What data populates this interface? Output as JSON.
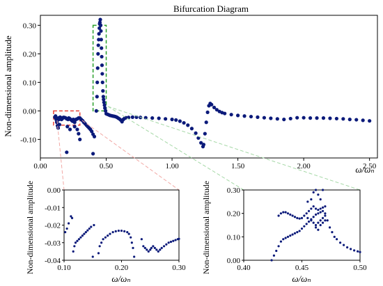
{
  "chart_data": [
    {
      "id": "main",
      "type": "scatter",
      "title": "Bifurcation Diagram",
      "xlabel": "ω/ωₙ",
      "ylabel": "Non-dimensional amplitude",
      "xlim": [
        0,
        2.56
      ],
      "ylim": [
        -0.165,
        0.335
      ],
      "xticks": [
        "0.00",
        "0.50",
        "1.00",
        "1.50",
        "2.00",
        "2.50"
      ],
      "xtick_values": [
        0,
        0.5,
        1.0,
        1.5,
        2.0,
        2.5
      ],
      "yticks": [
        "-0.10",
        "0.00",
        "0.10",
        "0.20",
        "0.30"
      ],
      "ytick_values": [
        -0.1,
        0.0,
        0.1,
        0.2,
        0.3
      ],
      "series_color": "#0b1a7a",
      "highlight_boxes": [
        {
          "color": "#e8453c",
          "x": [
            0.1,
            0.3
          ],
          "y": [
            -0.05,
            0.0
          ]
        },
        {
          "color": "#2aa02b",
          "x": [
            0.4,
            0.5
          ],
          "y": [
            0.0,
            0.3
          ]
        }
      ],
      "grid": false,
      "points": [
        [
          0.11,
          -0.022
        ],
        [
          0.115,
          -0.018
        ],
        [
          0.12,
          -0.03
        ],
        [
          0.125,
          -0.04
        ],
        [
          0.13,
          -0.052
        ],
        [
          0.135,
          -0.025
        ],
        [
          0.14,
          -0.03
        ],
        [
          0.145,
          -0.048
        ],
        [
          0.15,
          -0.022
        ],
        [
          0.155,
          -0.026
        ],
        [
          0.16,
          -0.03
        ],
        [
          0.165,
          -0.028
        ],
        [
          0.17,
          -0.024
        ],
        [
          0.175,
          -0.023
        ],
        [
          0.18,
          -0.023
        ],
        [
          0.19,
          -0.024
        ],
        [
          0.2,
          -0.028
        ],
        [
          0.205,
          -0.055
        ],
        [
          0.21,
          -0.03
        ],
        [
          0.215,
          -0.025
        ],
        [
          0.22,
          -0.026
        ],
        [
          0.225,
          -0.065
        ],
        [
          0.23,
          -0.03
        ],
        [
          0.235,
          -0.032
        ],
        [
          0.24,
          -0.034
        ],
        [
          0.245,
          -0.036
        ],
        [
          0.25,
          -0.03
        ],
        [
          0.255,
          -0.032
        ],
        [
          0.26,
          -0.035
        ],
        [
          0.27,
          -0.03
        ],
        [
          0.28,
          -0.028
        ],
        [
          0.29,
          -0.025
        ],
        [
          0.3,
          -0.025
        ],
        [
          0.31,
          -0.03
        ],
        [
          0.32,
          -0.034
        ],
        [
          0.33,
          -0.04
        ],
        [
          0.34,
          -0.045
        ],
        [
          0.35,
          -0.05
        ],
        [
          0.36,
          -0.055
        ],
        [
          0.37,
          -0.06
        ],
        [
          0.38,
          -0.065
        ],
        [
          0.39,
          -0.072
        ],
        [
          0.4,
          -0.082
        ],
        [
          0.41,
          -0.09
        ],
        [
          0.125,
          -0.038
        ],
        [
          0.135,
          -0.06
        ],
        [
          0.2,
          -0.145
        ],
        [
          0.26,
          -0.04
        ],
        [
          0.26,
          -0.055
        ],
        [
          0.28,
          -0.065
        ],
        [
          0.29,
          -0.08
        ],
        [
          0.3,
          -0.1
        ],
        [
          0.4,
          -0.15
        ],
        [
          0.425,
          0.0
        ],
        [
          0.43,
          0.05
        ],
        [
          0.432,
          0.1
        ],
        [
          0.435,
          0.15
        ],
        [
          0.438,
          0.2
        ],
        [
          0.44,
          0.23
        ],
        [
          0.443,
          0.25
        ],
        [
          0.445,
          0.27
        ],
        [
          0.448,
          0.29
        ],
        [
          0.45,
          0.305
        ],
        [
          0.452,
          0.31
        ],
        [
          0.455,
          0.32
        ],
        [
          0.458,
          0.3
        ],
        [
          0.46,
          0.28
        ],
        [
          0.462,
          0.25
        ],
        [
          0.464,
          0.22
        ],
        [
          0.466,
          0.19
        ],
        [
          0.468,
          0.16
        ],
        [
          0.47,
          0.13
        ],
        [
          0.472,
          0.1
        ],
        [
          0.475,
          0.07
        ],
        [
          0.478,
          0.05
        ],
        [
          0.48,
          0.04
        ],
        [
          0.483,
          0.03
        ],
        [
          0.487,
          0.02
        ],
        [
          0.49,
          0.01
        ],
        [
          0.495,
          0.0
        ],
        [
          0.5,
          -0.01
        ],
        [
          0.51,
          -0.012
        ],
        [
          0.52,
          -0.014
        ],
        [
          0.53,
          -0.016
        ],
        [
          0.54,
          -0.017
        ],
        [
          0.55,
          -0.018
        ],
        [
          0.56,
          -0.019
        ],
        [
          0.57,
          -0.02
        ],
        [
          0.58,
          -0.022
        ],
        [
          0.59,
          -0.025
        ],
        [
          0.6,
          -0.028
        ],
        [
          0.61,
          -0.032
        ],
        [
          0.62,
          -0.038
        ],
        [
          0.63,
          -0.03
        ],
        [
          0.64,
          -0.026
        ],
        [
          0.65,
          -0.024
        ],
        [
          0.67,
          -0.023
        ],
        [
          0.7,
          -0.022
        ],
        [
          0.73,
          -0.022
        ],
        [
          0.76,
          -0.023
        ],
        [
          0.8,
          -0.024
        ],
        [
          0.85,
          -0.025
        ],
        [
          0.9,
          -0.026
        ],
        [
          0.95,
          -0.028
        ],
        [
          1.0,
          -0.03
        ],
        [
          1.03,
          -0.032
        ],
        [
          1.06,
          -0.036
        ],
        [
          1.09,
          -0.042
        ],
        [
          1.12,
          -0.05
        ],
        [
          1.15,
          -0.062
        ],
        [
          1.18,
          -0.078
        ],
        [
          1.2,
          -0.095
        ],
        [
          1.22,
          -0.112
        ],
        [
          1.235,
          -0.125
        ],
        [
          1.24,
          -0.118
        ],
        [
          1.25,
          -0.08
        ],
        [
          1.26,
          -0.04
        ],
        [
          1.27,
          -0.005
        ],
        [
          1.28,
          0.018
        ],
        [
          1.29,
          0.026
        ],
        [
          1.3,
          0.022
        ],
        [
          1.32,
          0.012
        ],
        [
          1.34,
          0.004
        ],
        [
          1.36,
          -0.002
        ],
        [
          1.38,
          -0.006
        ],
        [
          1.4,
          -0.009
        ],
        [
          1.45,
          -0.013
        ],
        [
          1.5,
          -0.016
        ],
        [
          1.55,
          -0.018
        ],
        [
          1.6,
          -0.02
        ],
        [
          1.65,
          -0.022
        ],
        [
          1.7,
          -0.024
        ],
        [
          1.75,
          -0.026
        ],
        [
          1.8,
          -0.028
        ],
        [
          1.85,
          -0.03
        ],
        [
          1.9,
          -0.027
        ],
        [
          1.95,
          -0.024
        ],
        [
          2.0,
          -0.024
        ],
        [
          2.05,
          -0.025
        ],
        [
          2.1,
          -0.025
        ],
        [
          2.15,
          -0.025
        ],
        [
          2.2,
          -0.026
        ],
        [
          2.25,
          -0.027
        ],
        [
          2.3,
          -0.028
        ],
        [
          2.35,
          -0.03
        ],
        [
          2.4,
          -0.031
        ],
        [
          2.45,
          -0.033
        ],
        [
          2.5,
          -0.035
        ]
      ]
    },
    {
      "id": "inset-left",
      "type": "scatter",
      "xlabel": "ω/ωₙ",
      "ylabel": "Non-dimensional amplitude",
      "xlim": [
        0.1,
        0.3
      ],
      "ylim": [
        -0.04,
        0.0
      ],
      "xticks": [
        "0.10",
        "0.20",
        "0.30"
      ],
      "xtick_values": [
        0.1,
        0.2,
        0.3
      ],
      "yticks": [
        "-0.04",
        "-0.03",
        "-0.02",
        "-0.01",
        "0.00"
      ],
      "ytick_values": [
        -0.04,
        -0.03,
        -0.02,
        -0.01,
        0.0
      ],
      "points": [
        [
          0.102,
          -0.024
        ],
        [
          0.105,
          -0.022
        ],
        [
          0.108,
          -0.019
        ],
        [
          0.112,
          -0.015
        ],
        [
          0.114,
          -0.016
        ],
        [
          0.116,
          -0.035
        ],
        [
          0.118,
          -0.032
        ],
        [
          0.12,
          -0.03
        ],
        [
          0.123,
          -0.029
        ],
        [
          0.126,
          -0.028
        ],
        [
          0.129,
          -0.027
        ],
        [
          0.132,
          -0.026
        ],
        [
          0.135,
          -0.025
        ],
        [
          0.138,
          -0.024
        ],
        [
          0.141,
          -0.023
        ],
        [
          0.144,
          -0.022
        ],
        [
          0.147,
          -0.021
        ],
        [
          0.15,
          -0.038
        ],
        [
          0.152,
          -0.02
        ],
        [
          0.16,
          -0.036
        ],
        [
          0.162,
          -0.032
        ],
        [
          0.165,
          -0.03
        ],
        [
          0.168,
          -0.028
        ],
        [
          0.172,
          -0.027
        ],
        [
          0.176,
          -0.026
        ],
        [
          0.18,
          -0.025
        ],
        [
          0.185,
          -0.024
        ],
        [
          0.19,
          -0.0235
        ],
        [
          0.195,
          -0.0232
        ],
        [
          0.2,
          -0.0232
        ],
        [
          0.205,
          -0.0235
        ],
        [
          0.21,
          -0.024
        ],
        [
          0.213,
          -0.025
        ],
        [
          0.216,
          -0.027
        ],
        [
          0.218,
          -0.03
        ],
        [
          0.22,
          -0.033
        ],
        [
          0.222,
          -0.038
        ],
        [
          0.235,
          -0.028
        ],
        [
          0.238,
          -0.032
        ],
        [
          0.241,
          -0.033
        ],
        [
          0.244,
          -0.034
        ],
        [
          0.247,
          -0.035
        ],
        [
          0.25,
          -0.034
        ],
        [
          0.252,
          -0.033
        ],
        [
          0.255,
          -0.032
        ],
        [
          0.258,
          -0.033
        ],
        [
          0.261,
          -0.034
        ],
        [
          0.264,
          -0.035
        ],
        [
          0.267,
          -0.034
        ],
        [
          0.27,
          -0.033
        ],
        [
          0.274,
          -0.032
        ],
        [
          0.278,
          -0.031
        ],
        [
          0.282,
          -0.03
        ],
        [
          0.286,
          -0.0295
        ],
        [
          0.29,
          -0.029
        ],
        [
          0.294,
          -0.0285
        ],
        [
          0.298,
          -0.028
        ],
        [
          0.3,
          -0.0278
        ]
      ]
    },
    {
      "id": "inset-right",
      "type": "scatter",
      "xlabel": "ω/ωₙ",
      "ylabel": "Non-dimensional amplitude",
      "xlim": [
        0.4,
        0.5
      ],
      "ylim": [
        0.0,
        0.3
      ],
      "xticks": [
        "0.40",
        "0.45",
        "0.50"
      ],
      "xtick_values": [
        0.4,
        0.45,
        0.5
      ],
      "yticks": [
        "0.00",
        "0.10",
        "0.20",
        "0.30"
      ],
      "ytick_values": [
        0.0,
        0.1,
        0.2,
        0.3
      ],
      "points": [
        [
          0.424,
          0.0
        ],
        [
          0.426,
          0.02
        ],
        [
          0.428,
          0.04
        ],
        [
          0.43,
          0.06
        ],
        [
          0.432,
          0.08
        ],
        [
          0.434,
          0.09
        ],
        [
          0.436,
          0.095
        ],
        [
          0.438,
          0.1
        ],
        [
          0.44,
          0.105
        ],
        [
          0.442,
          0.11
        ],
        [
          0.444,
          0.115
        ],
        [
          0.446,
          0.12
        ],
        [
          0.448,
          0.125
        ],
        [
          0.45,
          0.135
        ],
        [
          0.452,
          0.145
        ],
        [
          0.454,
          0.155
        ],
        [
          0.456,
          0.165
        ],
        [
          0.458,
          0.175
        ],
        [
          0.46,
          0.185
        ],
        [
          0.462,
          0.195
        ],
        [
          0.464,
          0.2
        ],
        [
          0.466,
          0.205
        ],
        [
          0.468,
          0.21
        ],
        [
          0.47,
          0.2
        ],
        [
          0.472,
          0.17
        ],
        [
          0.474,
          0.14
        ],
        [
          0.476,
          0.12
        ],
        [
          0.478,
          0.1
        ],
        [
          0.48,
          0.09
        ],
        [
          0.483,
          0.075
        ],
        [
          0.486,
          0.065
        ],
        [
          0.489,
          0.055
        ],
        [
          0.492,
          0.048
        ],
        [
          0.495,
          0.042
        ],
        [
          0.498,
          0.038
        ],
        [
          0.5,
          0.035
        ],
        [
          0.43,
          0.19
        ],
        [
          0.432,
          0.2
        ],
        [
          0.434,
          0.205
        ],
        [
          0.436,
          0.205
        ],
        [
          0.438,
          0.2
        ],
        [
          0.44,
          0.195
        ],
        [
          0.442,
          0.19
        ],
        [
          0.444,
          0.185
        ],
        [
          0.446,
          0.18
        ],
        [
          0.448,
          0.178
        ],
        [
          0.45,
          0.18
        ],
        [
          0.452,
          0.19
        ],
        [
          0.454,
          0.2
        ],
        [
          0.456,
          0.21
        ],
        [
          0.458,
          0.22
        ],
        [
          0.46,
          0.23
        ],
        [
          0.462,
          0.22
        ],
        [
          0.464,
          0.215
        ],
        [
          0.466,
          0.22
        ],
        [
          0.468,
          0.225
        ],
        [
          0.47,
          0.23
        ],
        [
          0.455,
          0.25
        ],
        [
          0.458,
          0.26
        ],
        [
          0.46,
          0.29
        ],
        [
          0.462,
          0.3
        ],
        [
          0.464,
          0.28
        ],
        [
          0.466,
          0.26
        ],
        [
          0.468,
          0.3
        ],
        [
          0.455,
          0.18
        ],
        [
          0.458,
          0.17
        ],
        [
          0.46,
          0.16
        ],
        [
          0.462,
          0.15
        ],
        [
          0.464,
          0.16
        ],
        [
          0.466,
          0.17
        ],
        [
          0.468,
          0.18
        ],
        [
          0.47,
          0.19
        ],
        [
          0.462,
          0.14
        ],
        [
          0.464,
          0.13
        ],
        [
          0.466,
          0.15
        ],
        [
          0.468,
          0.16
        ],
        [
          0.47,
          0.17
        ]
      ]
    }
  ]
}
